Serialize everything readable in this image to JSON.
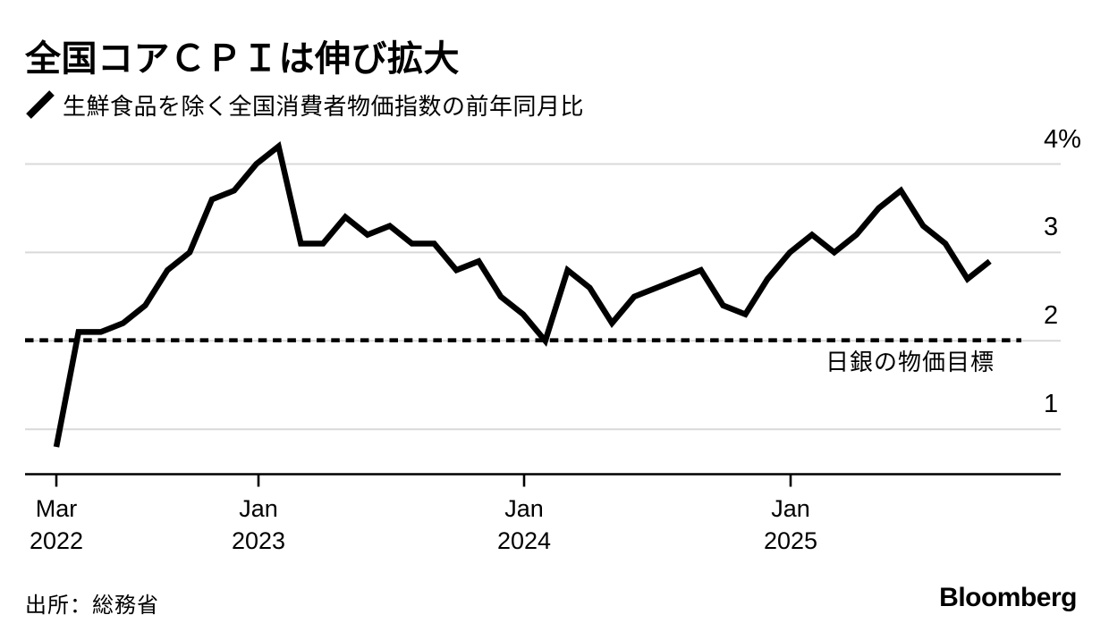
{
  "header": {
    "title": "全国コアＣＰＩは伸び拡大",
    "legend_label": "生鮮食品を除く全国消費者物価指数の前年同月比"
  },
  "chart_data": {
    "type": "line",
    "title": "全国コアＣＰＩは伸び拡大",
    "subtitle": "生鮮食品を除く全国消費者物価指数の前年同月比",
    "unit": "%",
    "x_start_month": "2022-03",
    "x_end_month": "2025-09",
    "series": [
      {
        "name": "生鮮食品を除く全国消費者物価指数の前年同月比",
        "values": [
          0.8,
          2.1,
          2.1,
          2.2,
          2.4,
          2.8,
          3.0,
          3.6,
          3.7,
          4.0,
          4.2,
          3.1,
          3.1,
          3.4,
          3.2,
          3.3,
          3.1,
          3.1,
          2.8,
          2.9,
          2.5,
          2.3,
          2.0,
          2.8,
          2.6,
          2.2,
          2.5,
          2.6,
          2.7,
          2.8,
          2.4,
          2.3,
          2.7,
          3.0,
          3.2,
          3.0,
          3.2,
          3.5,
          3.7,
          3.3,
          3.1,
          2.7,
          2.9
        ]
      }
    ],
    "y_ticks": [
      {
        "label": "4%",
        "value": 4
      },
      {
        "label": "3",
        "value": 3
      },
      {
        "label": "2",
        "value": 2
      },
      {
        "label": "1",
        "value": 1
      }
    ],
    "x_ticks": [
      {
        "month": "Mar",
        "year": "2022"
      },
      {
        "month": "Jan",
        "year": "2023"
      },
      {
        "month": "Jan",
        "year": "2024"
      },
      {
        "month": "Jan",
        "year": "2025"
      }
    ],
    "reference_line": {
      "value": 2,
      "label": "日銀の物価目標",
      "style": "dashed"
    },
    "ylim": [
      0.45,
      4.55
    ],
    "grid": true,
    "legend_position": "top-left",
    "colors": {
      "series": "#000000",
      "grid": "#d9d9d9",
      "reference": "#000000",
      "axis": "#000000"
    }
  },
  "footer": {
    "source": "出所：総務省",
    "logo": "Bloomberg"
  }
}
